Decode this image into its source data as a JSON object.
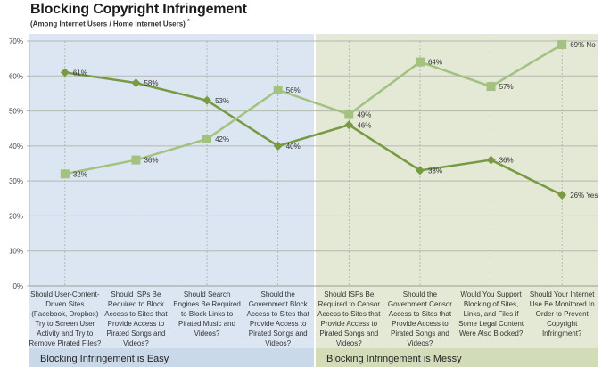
{
  "title": "Blocking Copyright Infringement",
  "subtitle": "(Among Internet Users / Home Internet Users)",
  "subtitle_mark": "*",
  "colors": {
    "easy_bg": "#dce6f2",
    "messy_bg": "#e4e9d6",
    "easy_band": "#c9d9ea",
    "messy_band": "#d3dcb8",
    "yes_series": "#779a43",
    "no_series": "#a3c17f",
    "grid": "#b5b8b0"
  },
  "chart_data": {
    "type": "line",
    "title": "Blocking Copyright Infringement",
    "subtitle": "(Among Internet Users / Home Internet Users)",
    "xlabel": "",
    "ylabel": "",
    "ylim": [
      0,
      70
    ],
    "yticks": [
      0,
      10,
      20,
      30,
      40,
      50,
      60,
      70
    ],
    "ytick_labels": [
      "0%",
      "10%",
      "20%",
      "30%",
      "40%",
      "50%",
      "60%",
      "70%"
    ],
    "grid": true,
    "categories": [
      [
        "Should User-Content-",
        "Driven Sites",
        "(Facebook, Dropbox)",
        "Try to Screen User",
        "Activity and Try to",
        "Remove Pirated Files?"
      ],
      [
        "Should ISPs Be",
        "Required to Block",
        "Access to Sites that",
        "Provide Access to",
        "Pirated Songs and",
        "Videos?"
      ],
      [
        "Should Search",
        "Engines Be Required",
        "to Block Links to",
        "Pirated Music and",
        "Videos?"
      ],
      [
        "Should the",
        "Government Block",
        "Access to Sites that",
        "Provide Access to",
        "Pirated Songs and",
        "Videos?"
      ],
      [
        "Should ISPs Be",
        "Required to Censor",
        "Access to Sites that",
        "Provide Access to",
        "Pirated Songs and",
        "Videos?"
      ],
      [
        "Should the",
        "Government Censor",
        "Access to Sites that",
        "Provide Access to",
        "Pirated Songs and",
        "Videos?"
      ],
      [
        "Would You Support",
        "Blocking of Sites,",
        "Links, and Files if",
        "Some Legal Content",
        "Were Also Blocked?"
      ],
      [
        "Should Your Internet",
        "Use Be Monitored In",
        "Order to Prevent",
        "Copyright",
        "Infringment?"
      ]
    ],
    "series": [
      {
        "name": "Yes",
        "marker": "diamond",
        "values": [
          61,
          58,
          53,
          40,
          46,
          33,
          36,
          26
        ],
        "labels": [
          "61%",
          "58%",
          "53%",
          "40%",
          "46%",
          "33%",
          "36%",
          "26% Yes"
        ]
      },
      {
        "name": "No",
        "marker": "square",
        "values": [
          32,
          36,
          42,
          56,
          49,
          64,
          57,
          69
        ],
        "labels": [
          "32%",
          "36%",
          "42%",
          "56%",
          "49%",
          "64%",
          "57%",
          "69% No"
        ]
      }
    ],
    "groups": [
      {
        "label": "Blocking Infringement is Easy",
        "categories": [
          0,
          1,
          2,
          3
        ]
      },
      {
        "label": "Blocking Infringement is Messy",
        "categories": [
          4,
          5,
          6,
          7
        ]
      }
    ]
  }
}
